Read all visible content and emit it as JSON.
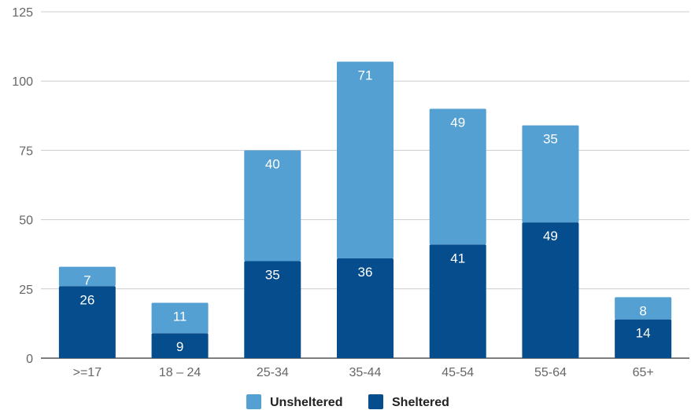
{
  "chart_data": {
    "type": "bar",
    "stacked": true,
    "categories": [
      ">=17",
      "18 – 24",
      "25-34",
      "35-44",
      "45-54",
      "55-64",
      "65+"
    ],
    "series": [
      {
        "name": "Sheltered",
        "values": [
          26,
          9,
          35,
          36,
          41,
          49,
          14
        ],
        "color": "#064d8d"
      },
      {
        "name": "Unsheltered",
        "values": [
          7,
          11,
          40,
          71,
          49,
          35,
          8
        ],
        "color": "#54a0d3"
      }
    ],
    "yticks": [
      0,
      25,
      50,
      75,
      100,
      125
    ],
    "ylim": [
      0,
      125
    ],
    "grid": true,
    "legend_position": "bottom",
    "legend_order": [
      "Unsheltered",
      "Sheltered"
    ],
    "data_labels": true
  }
}
